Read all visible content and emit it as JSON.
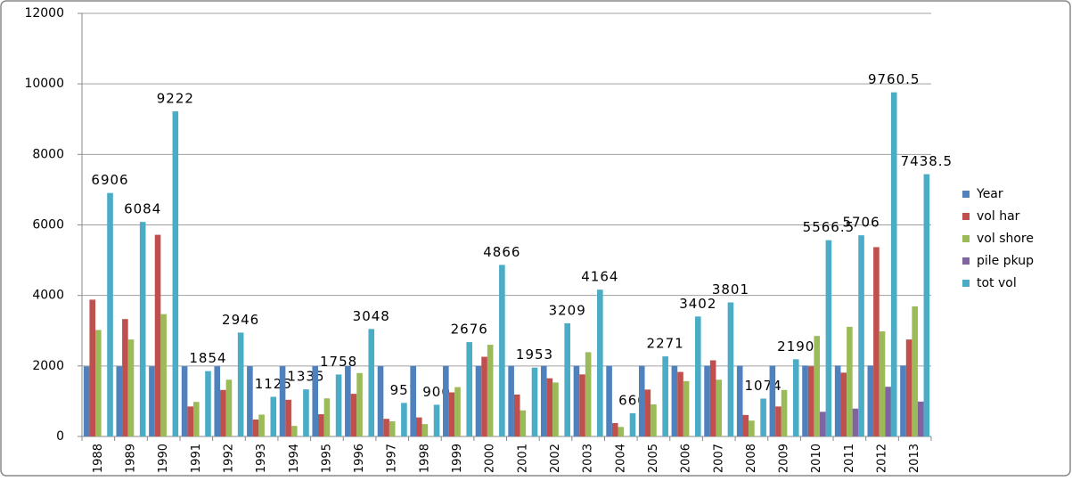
{
  "chart_data": {
    "type": "bar",
    "categories": [
      "1988",
      "1989",
      "1990",
      "1991",
      "1992",
      "1993",
      "1994",
      "1995",
      "1996",
      "1997",
      "1998",
      "1999",
      "2000",
      "2001",
      "2002",
      "2003",
      "2004",
      "2005",
      "2006",
      "2007",
      "2008",
      "2009",
      "2010",
      "2011",
      "2012",
      "2013"
    ],
    "series": [
      {
        "name": "Year",
        "color": "#4f81bd",
        "values": [
          1988,
          1989,
          1990,
          1991,
          1992,
          1993,
          1994,
          1995,
          1996,
          1997,
          1998,
          1999,
          2000,
          2001,
          2002,
          2003,
          2004,
          2005,
          2006,
          2007,
          2008,
          2009,
          2010,
          2011,
          2012,
          2013
        ]
      },
      {
        "name": "vol har",
        "color": "#c0504d",
        "values": [
          3880,
          3330,
          5720,
          850,
          1320,
          480,
          1040,
          630,
          1210,
          500,
          540,
          1250,
          2260,
          1190,
          1650,
          1760,
          380,
          1330,
          1830,
          2160,
          610,
          850,
          1990,
          1810,
          5370,
          2750
        ]
      },
      {
        "name": "vol shore",
        "color": "#9bbb59",
        "values": [
          3020,
          2750,
          3470,
          980,
          1610,
          620,
          300,
          1080,
          1800,
          430,
          350,
          1400,
          2600,
          740,
          1530,
          2390,
          270,
          910,
          1570,
          1610,
          450,
          1320,
          2850,
          3110,
          2980,
          3690
        ]
      },
      {
        "name": "pile pkup",
        "color": "#8064a2",
        "values": [
          0,
          0,
          0,
          0,
          0,
          0,
          0,
          0,
          0,
          0,
          0,
          0,
          0,
          0,
          0,
          0,
          0,
          0,
          0,
          0,
          0,
          0,
          700,
          790,
          1410,
          990
        ]
      },
      {
        "name": "tot vol",
        "color": "#4bacc6",
        "show_labels": true,
        "values": [
          6906,
          6084,
          9222,
          1854,
          2946,
          1125,
          1335,
          1758,
          3048,
          951,
          900,
          2676,
          4866,
          1953,
          3209,
          4164,
          660,
          2271,
          3402,
          3801,
          1074,
          2190,
          5566.5,
          5706,
          9760.5,
          7438.5
        ]
      }
    ],
    "ylim": [
      0,
      12000
    ],
    "yticks": [
      0,
      2000,
      4000,
      6000,
      8000,
      10000,
      12000
    ],
    "grid": true,
    "legend": "right"
  }
}
